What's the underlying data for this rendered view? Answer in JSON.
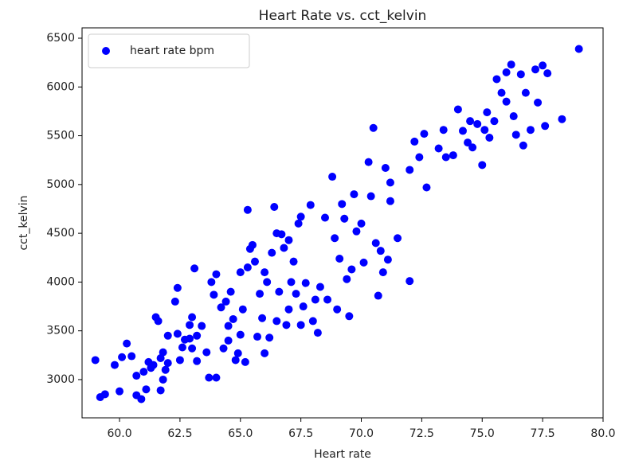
{
  "chart_data": {
    "type": "scatter",
    "title": "Heart Rate vs. cct_kelvin",
    "xlabel": "Heart rate",
    "ylabel": "cct_kelvin",
    "x": [
      59.0,
      59.2,
      59.4,
      59.8,
      60.0,
      60.1,
      60.3,
      60.5,
      60.7,
      60.7,
      60.9,
      61.0,
      61.1,
      61.2,
      61.3,
      61.4,
      61.5,
      61.6,
      61.7,
      61.7,
      61.8,
      61.8,
      62.0,
      62.0,
      61.9,
      62.3,
      62.4,
      62.4,
      62.5,
      62.6,
      62.7,
      62.9,
      62.9,
      63.0,
      63.0,
      63.1,
      63.2,
      63.2,
      63.4,
      63.6,
      63.7,
      63.8,
      63.9,
      64.0,
      64.0,
      64.2,
      64.3,
      64.4,
      64.5,
      64.5,
      64.6,
      64.7,
      64.8,
      64.9,
      65.0,
      65.0,
      65.1,
      65.2,
      65.3,
      65.3,
      65.4,
      65.5,
      65.6,
      65.7,
      65.8,
      65.9,
      66.0,
      66.0,
      66.1,
      66.2,
      66.3,
      66.4,
      66.5,
      66.5,
      66.6,
      66.7,
      66.8,
      66.9,
      67.0,
      67.0,
      67.1,
      67.2,
      67.3,
      67.4,
      67.5,
      67.5,
      67.6,
      67.7,
      67.9,
      68.0,
      68.1,
      68.2,
      68.3,
      68.5,
      68.6,
      68.8,
      68.9,
      69.0,
      69.1,
      69.2,
      69.3,
      69.4,
      69.5,
      69.6,
      69.7,
      69.8,
      70.0,
      70.1,
      70.3,
      70.4,
      70.5,
      70.6,
      70.7,
      70.8,
      70.9,
      71.0,
      71.1,
      71.2,
      71.2,
      71.5,
      72.0,
      72.0,
      72.2,
      72.4,
      72.6,
      72.7,
      73.2,
      73.4,
      73.5,
      73.8,
      74.0,
      74.2,
      74.4,
      74.5,
      74.6,
      74.8,
      75.0,
      75.1,
      75.2,
      75.3,
      75.5,
      75.6,
      75.8,
      76.0,
      76.0,
      76.2,
      76.3,
      76.4,
      76.6,
      76.7,
      76.8,
      77.0,
      77.2,
      77.3,
      77.5,
      77.6,
      77.7,
      78.3,
      79.0
    ],
    "series": [
      {
        "name": "heart rate bpm",
        "color": "#0000ff",
        "values": [
          3200,
          2820,
          2850,
          3150,
          2880,
          3230,
          3370,
          3240,
          2840,
          3040,
          2800,
          3080,
          2900,
          3180,
          3120,
          3150,
          3640,
          3600,
          3220,
          2890,
          3000,
          3280,
          3170,
          3450,
          3100,
          3800,
          3470,
          3940,
          3200,
          3330,
          3410,
          3560,
          3420,
          3320,
          3640,
          4140,
          3190,
          3450,
          3550,
          3280,
          3020,
          4000,
          3870,
          3020,
          4080,
          3740,
          3320,
          3800,
          3550,
          3400,
          3900,
          3620,
          3200,
          3270,
          4100,
          3460,
          3720,
          3180,
          4740,
          4150,
          4340,
          4380,
          4210,
          3440,
          3880,
          3630,
          4100,
          3270,
          4000,
          3430,
          4300,
          4770,
          4500,
          3600,
          3900,
          4490,
          4350,
          3560,
          4430,
          3720,
          4000,
          4210,
          3880,
          4600,
          3560,
          4670,
          3750,
          3990,
          4790,
          3600,
          3820,
          3480,
          3950,
          4660,
          3820,
          5080,
          4450,
          3720,
          4240,
          4800,
          4650,
          4030,
          3650,
          4130,
          4900,
          4520,
          4600,
          4200,
          5230,
          4880,
          5580,
          4400,
          3860,
          4320,
          4100,
          5170,
          4230,
          5020,
          4830,
          4450,
          4010,
          5150,
          5440,
          5280,
          5520,
          4970,
          5370,
          5560,
          5280,
          5300,
          5770,
          5550,
          5430,
          5650,
          5380,
          5620,
          5200,
          5560,
          5740,
          5480,
          5650,
          6080,
          5940,
          5850,
          6150,
          6230,
          5700,
          5510,
          6130,
          5400,
          5940,
          5560,
          6180,
          5840,
          6220,
          5600,
          6140,
          5670,
          6390
        ]
      }
    ],
    "xlim": [
      58.45,
      80.0
    ],
    "ylim": [
      2608,
      6606
    ],
    "xticks": [
      {
        "value": 60,
        "label": "60.0"
      },
      {
        "value": 62.5,
        "label": "62.5"
      },
      {
        "value": 65,
        "label": "65.0"
      },
      {
        "value": 67.5,
        "label": "67.5"
      },
      {
        "value": 70,
        "label": "70.0"
      },
      {
        "value": 72.5,
        "label": "72.5"
      },
      {
        "value": 75,
        "label": "75.0"
      },
      {
        "value": 77.5,
        "label": "77.5"
      },
      {
        "value": 80,
        "label": "80.0"
      }
    ],
    "yticks": [
      3000,
      3500,
      4000,
      4500,
      5000,
      5500,
      6000,
      6500
    ],
    "legend": "upper left",
    "grid": false
  }
}
